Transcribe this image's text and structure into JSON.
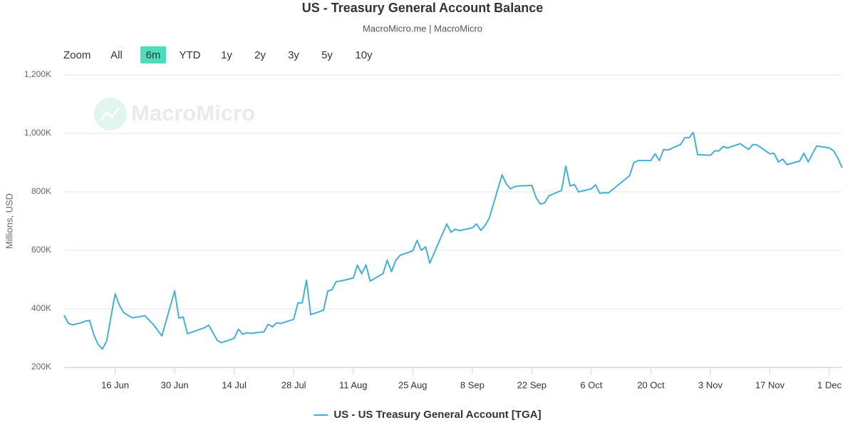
{
  "chart_data": {
    "type": "line",
    "title": "US - Treasury General Account Balance",
    "subtitle": "MacroMicro.me | MacroMicro",
    "watermark": "MacroMicro",
    "zoom_label": "Zoom",
    "zoom_buttons": [
      "All",
      "6m",
      "YTD",
      "1y",
      "2y",
      "3y",
      "5y",
      "10y"
    ],
    "zoom_active": "6m",
    "zoom_active_color": "#4fdcba",
    "y_label": "Millions, USD",
    "grid": true,
    "legend": "bottom",
    "xlim": [
      "4 Jun",
      "4 Dec"
    ],
    "xticks": [
      "16 Jun",
      "30 Jun",
      "14 Jul",
      "28 Jul",
      "11 Aug",
      "25 Aug",
      "8 Sep",
      "22 Sep",
      "6 Oct",
      "20 Oct",
      "3 Nov",
      "17 Nov",
      "1 Dec"
    ],
    "ylim": [
      200000,
      1200000
    ],
    "yticks": [
      {
        "value": 200000,
        "label": "200K"
      },
      {
        "value": 400000,
        "label": "400K"
      },
      {
        "value": 600000,
        "label": "600K"
      },
      {
        "value": 800000,
        "label": "800K"
      },
      {
        "value": 1000000,
        "label": "1,000K"
      },
      {
        "value": 1200000,
        "label": "1,200K"
      }
    ],
    "x": [
      "4 Jun",
      "5 Jun",
      "6 Jun",
      "8 Jun",
      "9 Jun",
      "10 Jun",
      "11 Jun",
      "12 Jun",
      "13 Jun",
      "14 Jun",
      "16 Jun",
      "17 Jun",
      "18 Jun",
      "20 Jun",
      "23 Jun",
      "25 Jun",
      "27 Jun",
      "30 Jun",
      "1 Jul",
      "2 Jul",
      "3 Jul",
      "7 Jul",
      "8 Jul",
      "10 Jul",
      "11 Jul",
      "14 Jul",
      "15 Jul",
      "16 Jul",
      "17 Jul",
      "18 Jul",
      "21 Jul",
      "22 Jul",
      "23 Jul",
      "24 Jul",
      "25 Jul",
      "28 Jul",
      "29 Jul",
      "30 Jul",
      "31 Jul",
      "1 Aug",
      "4 Aug",
      "5 Aug",
      "6 Aug",
      "7 Aug",
      "8 Aug",
      "11 Aug",
      "12 Aug",
      "13 Aug",
      "14 Aug",
      "15 Aug",
      "18 Aug",
      "19 Aug",
      "20 Aug",
      "21 Aug",
      "22 Aug",
      "25 Aug",
      "26 Aug",
      "27 Aug",
      "28 Aug",
      "29 Aug",
      "2 Sep",
      "3 Sep",
      "4 Sep",
      "5 Sep",
      "8 Sep",
      "9 Sep",
      "10 Sep",
      "11 Sep",
      "12 Sep",
      "15 Sep",
      "16 Sep",
      "17 Sep",
      "18 Sep",
      "19 Sep",
      "22 Sep",
      "23 Sep",
      "24 Sep",
      "25 Sep",
      "26 Sep",
      "29 Sep",
      "30 Sep",
      "1 Oct",
      "2 Oct",
      "3 Oct",
      "6 Oct",
      "7 Oct",
      "8 Oct",
      "9 Oct",
      "10 Oct",
      "15 Oct",
      "16 Oct",
      "17 Oct",
      "20 Oct",
      "21 Oct",
      "22 Oct",
      "23 Oct",
      "24 Oct",
      "27 Oct",
      "28 Oct",
      "29 Oct",
      "30 Oct",
      "31 Oct",
      "3 Nov",
      "4 Nov",
      "5 Nov",
      "6 Nov",
      "7 Nov",
      "10 Nov",
      "12 Nov",
      "13 Nov",
      "14 Nov",
      "17 Nov",
      "18 Nov",
      "19 Nov",
      "20 Nov",
      "21 Nov",
      "24 Nov",
      "25 Nov",
      "26 Nov",
      "28 Nov",
      "1 Dec",
      "2 Dec",
      "3 Dec",
      "4 Dec"
    ],
    "series": [
      {
        "name": "US - US Treasury General Account [TGA]",
        "color": "#45b0d3",
        "values": [
          378000,
          350000,
          345000,
          352000,
          358000,
          360000,
          310000,
          278000,
          262000,
          290000,
          451000,
          412000,
          387000,
          369000,
          376000,
          346000,
          307000,
          461000,
          368000,
          372000,
          315000,
          335000,
          344000,
          292000,
          284000,
          299000,
          330000,
          313000,
          318000,
          316000,
          321000,
          347000,
          338000,
          352000,
          350000,
          364000,
          420000,
          420000,
          498000,
          380000,
          395000,
          461000,
          465000,
          493000,
          495000,
          505000,
          549000,
          520000,
          550000,
          495000,
          520000,
          566000,
          527000,
          565000,
          583000,
          598000,
          634000,
          600000,
          612000,
          556000,
          690000,
          662000,
          672000,
          667000,
          677000,
          690000,
          668000,
          685000,
          710000,
          858000,
          827000,
          810000,
          818000,
          820000,
          822000,
          780000,
          758000,
          762000,
          786000,
          805000,
          888000,
          820000,
          825000,
          800000,
          810000,
          824000,
          795000,
          797000,
          796000,
          855000,
          900000,
          907000,
          907000,
          930000,
          907000,
          945000,
          943000,
          962000,
          985000,
          985000,
          1003000,
          927000,
          925000,
          940000,
          940000,
          955000,
          950000,
          965000,
          945000,
          962000,
          960000,
          930000,
          932000,
          902000,
          912000,
          893000,
          905000,
          932000,
          902000,
          957000,
          950000,
          940000,
          915000,
          882000
        ]
      }
    ]
  }
}
